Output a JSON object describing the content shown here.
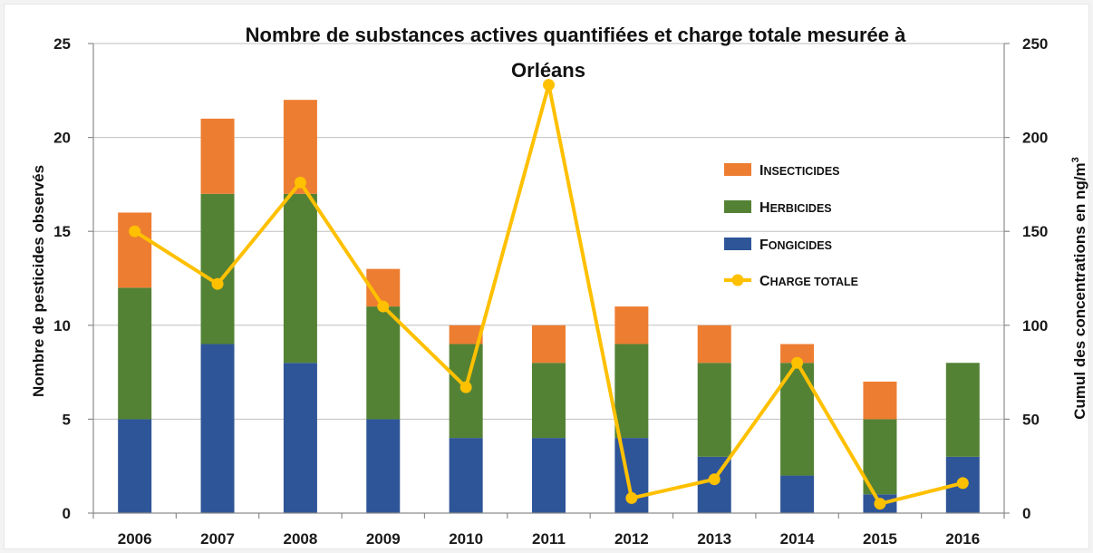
{
  "chart_data": {
    "type": "bar",
    "stacked": true,
    "title": "Nombre de substances actives quantifiées et charge totale mesurée à Orléans",
    "title_lines": [
      "Nombre de substances actives quantifiées et charge totale mesurée à",
      "Orléans"
    ],
    "categories": [
      "2006",
      "2007",
      "2008",
      "2009",
      "2010",
      "2011",
      "2012",
      "2013",
      "2014",
      "2015",
      "2016"
    ],
    "ylabel": "Nombre de pesticides observés",
    "y2label": "Cumul des concentrations en ng/m",
    "y2label_sup": "3",
    "ylim": [
      0,
      25
    ],
    "y2lim": [
      0,
      250
    ],
    "yticks": [
      0,
      5,
      10,
      15,
      20,
      25
    ],
    "y2ticks": [
      0,
      50,
      100,
      150,
      200,
      250
    ],
    "grid": true,
    "legend_position": "right",
    "series": [
      {
        "name": "Fongicides",
        "legend": [
          "F",
          "ONGICIDES"
        ],
        "color": "#2e5597",
        "values": [
          5,
          9,
          8,
          5,
          4,
          4,
          4,
          3,
          2,
          1,
          3
        ]
      },
      {
        "name": "Herbicides",
        "legend": [
          "H",
          "ERBICIDES"
        ],
        "color": "#548235",
        "values": [
          7,
          8,
          9,
          6,
          5,
          4,
          5,
          5,
          6,
          4,
          5
        ]
      },
      {
        "name": "Insecticides",
        "legend": [
          "I",
          "NSECTICIDES"
        ],
        "color": "#ed7d31",
        "values": [
          4,
          4,
          5,
          2,
          1,
          2,
          2,
          2,
          1,
          2,
          0
        ]
      }
    ],
    "line_series": {
      "name": "Charge totale",
      "legend": [
        "C",
        "HARGE TOTALE"
      ],
      "color": "#ffc000",
      "axis": "right",
      "values": [
        150,
        122,
        176,
        110,
        67,
        228,
        8,
        18,
        80,
        5,
        16
      ]
    }
  }
}
